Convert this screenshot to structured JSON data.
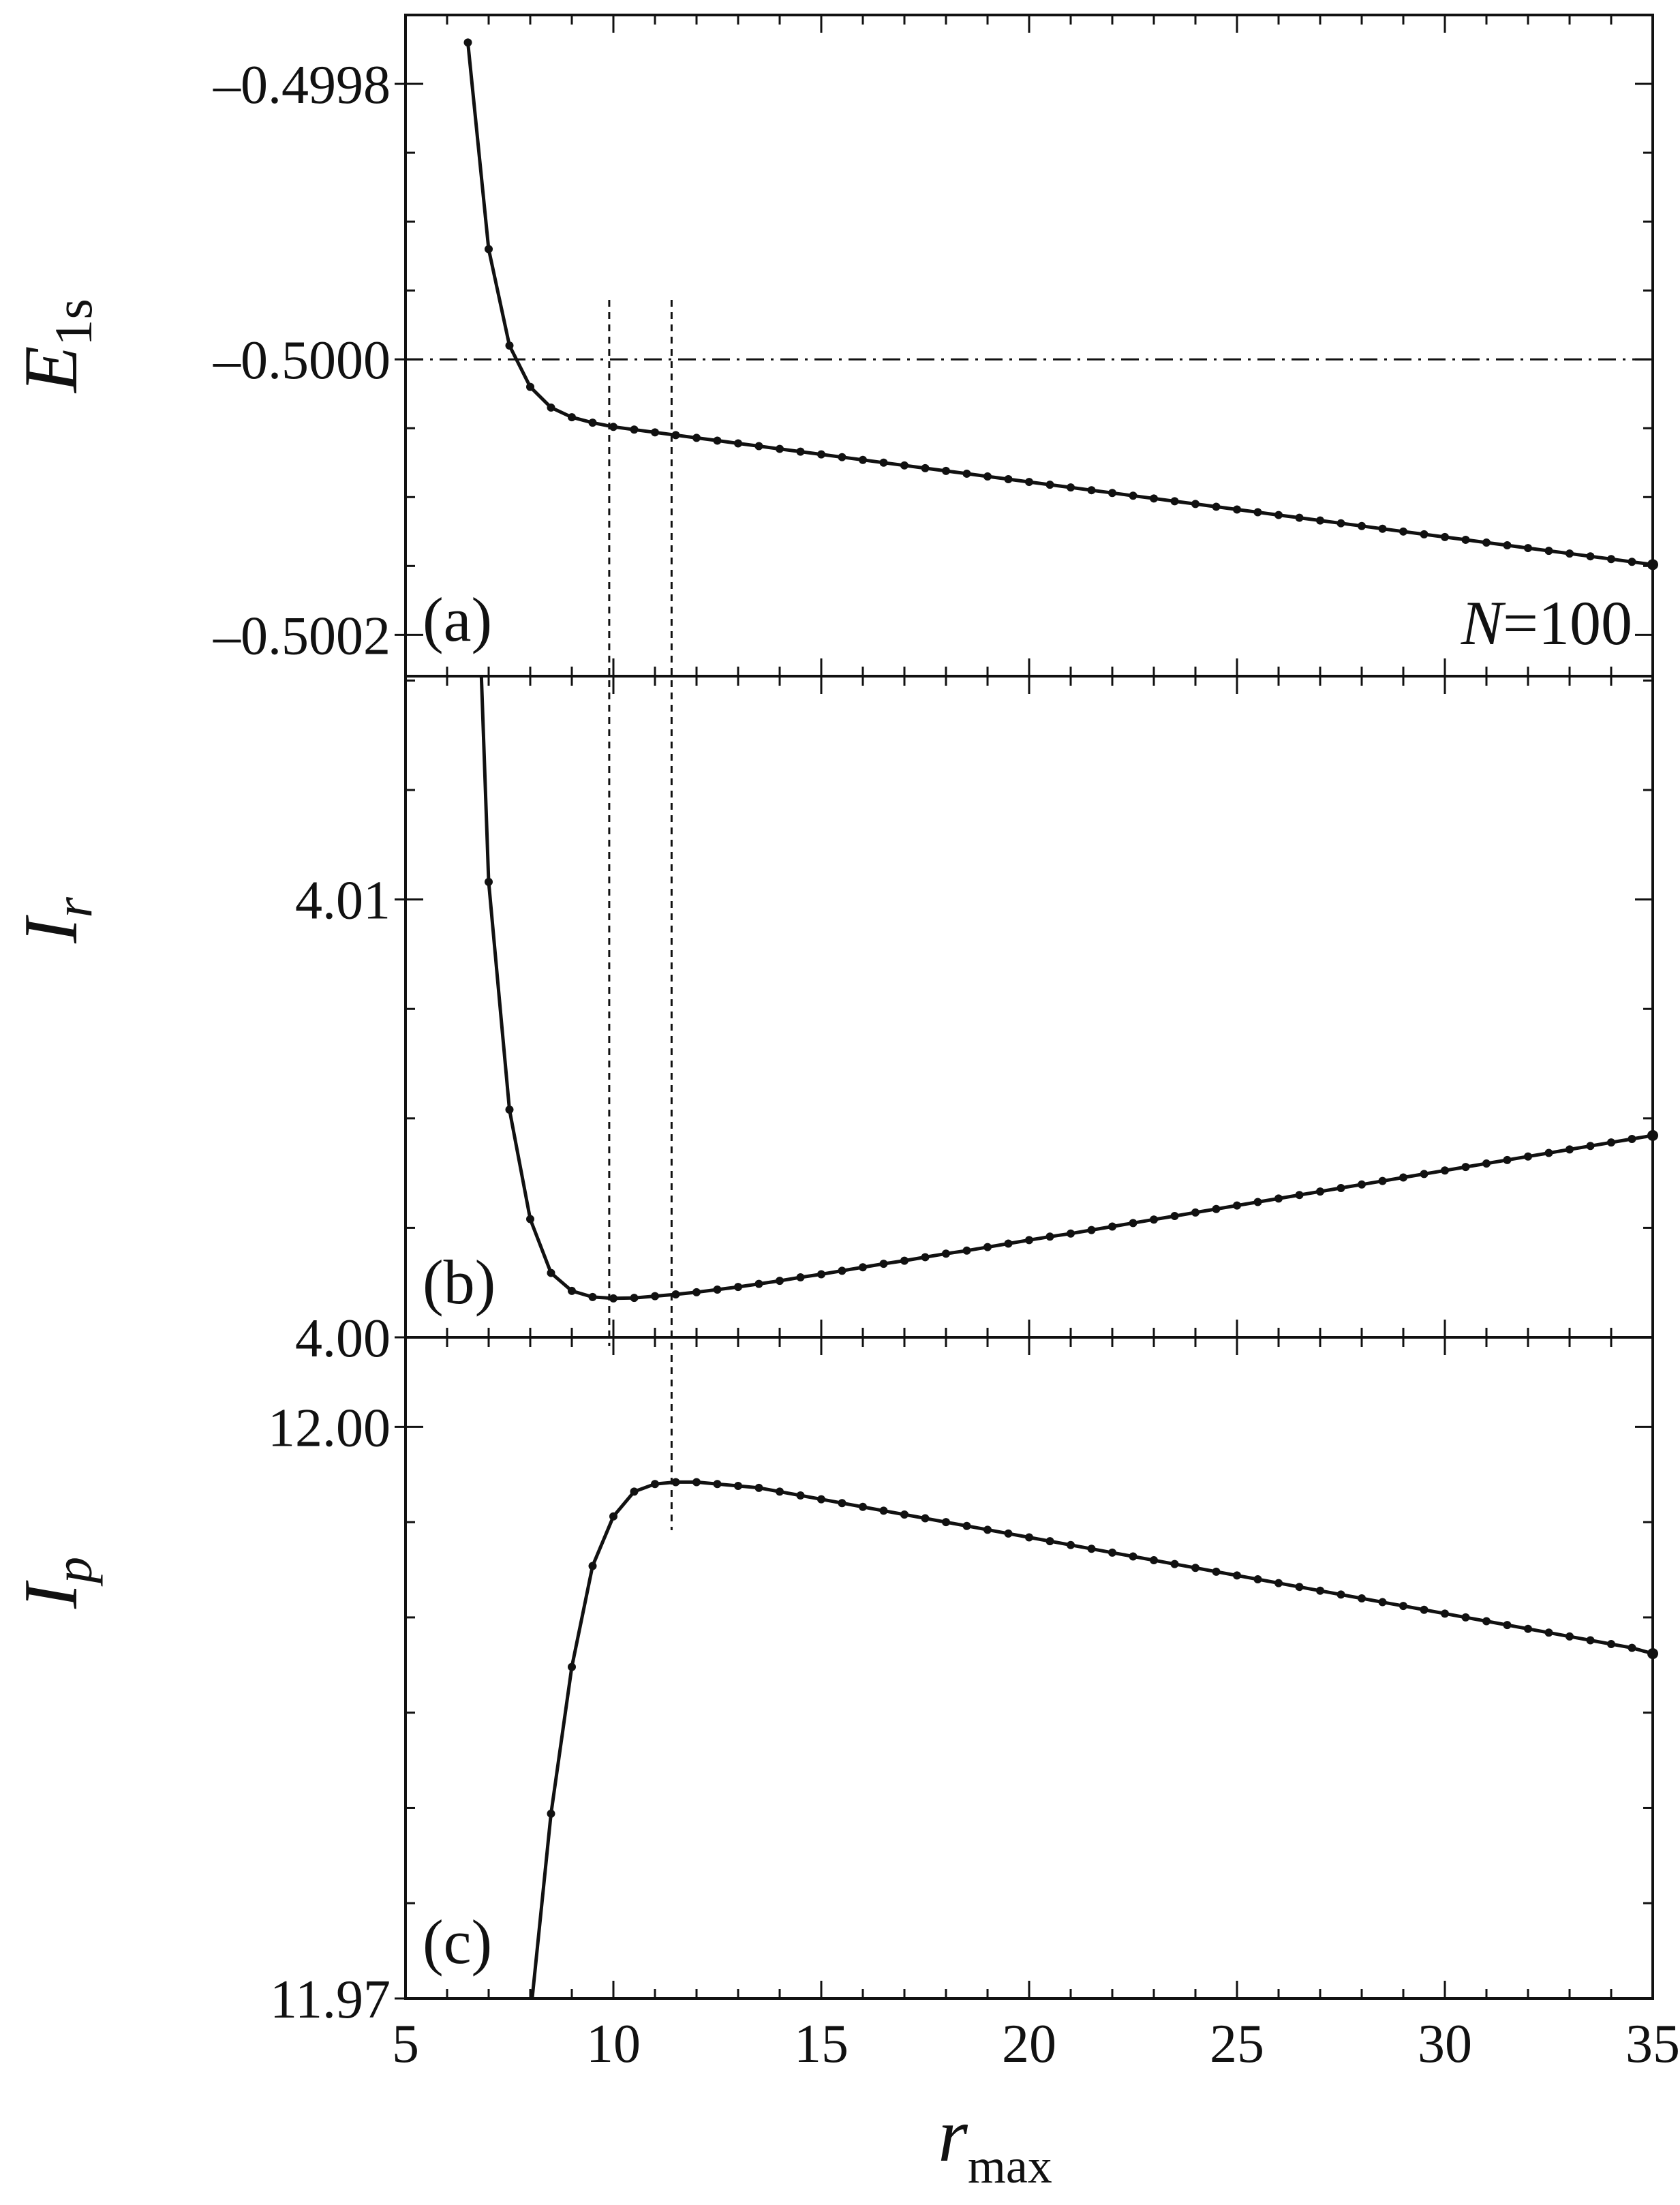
{
  "chart_data": {
    "type": "line",
    "x_axis": {
      "label_main": "r",
      "label_sub": "max",
      "range": [
        5,
        35
      ],
      "ticks": [
        "5",
        "10",
        "15",
        "20",
        "25",
        "30",
        "35"
      ],
      "tick_values": [
        5,
        10,
        15,
        20,
        25,
        30,
        35
      ]
    },
    "panels": [
      {
        "id": "a",
        "label": "(a)",
        "ylabel_main": "E",
        "ylabel_sub": "1s",
        "ylim": [
          -0.50023,
          -0.49975
        ],
        "yticks": [
          {
            "value": -0.4998,
            "label": "–0.4998"
          },
          {
            "value": -0.5,
            "label": "–0.5000"
          },
          {
            "value": -0.5002,
            "label": "–0.5002"
          }
        ],
        "annotation": {
          "italic": "N",
          "rest": "=100"
        },
        "reference_line": -0.5,
        "series": [
          {
            "x": [
              6.5,
              7.0,
              7.5,
              8.0,
              8.5,
              9.0,
              9.5,
              10.0,
              10.5,
              11.0,
              11.5,
              12.0,
              12.5,
              13.0,
              13.5,
              14.0,
              14.5,
              15.0,
              15.5,
              16.0,
              16.5,
              17.0,
              17.5,
              18.0,
              18.5,
              19.0,
              19.5,
              20.0,
              20.5,
              21.0,
              21.5,
              22.0,
              22.5,
              23.0,
              23.5,
              24.0,
              24.5,
              25.0,
              25.5,
              26.0,
              26.5,
              27.0,
              27.5,
              28.0,
              28.5,
              29.0,
              29.5,
              30.0,
              30.5,
              31.0,
              31.5,
              32.0,
              32.5,
              33.0,
              33.5,
              34.0,
              34.5,
              35.0
            ],
            "y": [
              -0.49977,
              -0.49992,
              -0.49999,
              -0.50002,
              -0.500035,
              -0.500042,
              -0.500046,
              -0.500049,
              -0.500051,
              -0.500053,
              -0.500055,
              -0.500057,
              -0.500059,
              -0.500061,
              -0.500063,
              -0.500065,
              -0.500067,
              -0.500069,
              -0.500071,
              -0.500073,
              -0.500075,
              -0.500077,
              -0.500079,
              -0.500081,
              -0.500083,
              -0.500085,
              -0.500087,
              -0.500089,
              -0.500091,
              -0.500093,
              -0.500095,
              -0.500097,
              -0.500099,
              -0.500101,
              -0.500103,
              -0.500105,
              -0.500107,
              -0.500109,
              -0.500111,
              -0.500113,
              -0.500115,
              -0.500117,
              -0.500119,
              -0.500121,
              -0.500123,
              -0.500125,
              -0.500127,
              -0.500129,
              -0.500131,
              -0.500133,
              -0.500135,
              -0.500137,
              -0.500139,
              -0.500141,
              -0.500143,
              -0.500145,
              -0.500147,
              -0.500149
            ]
          }
        ]
      },
      {
        "id": "b",
        "label": "(b)",
        "ylabel_main": "I",
        "ylabel_sub": "r",
        "ylim": [
          4.0,
          4.0151
        ],
        "yticks": [
          {
            "value": 4.01,
            "label": "4.01"
          },
          {
            "value": 4.0,
            "label": "4.00"
          }
        ],
        "series": [
          {
            "x": [
              6.5,
              7.0,
              7.5,
              8.0,
              8.5,
              9.0,
              9.5,
              10.0,
              10.5,
              11.0,
              11.5,
              12.0,
              12.5,
              13.0,
              13.5,
              14.0,
              14.5,
              15.0,
              15.5,
              16.0,
              16.5,
              17.0,
              17.5,
              18.0,
              18.5,
              19.0,
              19.5,
              20.0,
              20.5,
              21.0,
              21.5,
              22.0,
              22.5,
              23.0,
              23.5,
              24.0,
              24.5,
              25.0,
              25.5,
              26.0,
              26.5,
              27.0,
              27.5,
              28.0,
              28.5,
              29.0,
              29.5,
              30.0,
              30.5,
              31.0,
              31.5,
              32.0,
              32.5,
              33.0,
              33.5,
              34.0,
              34.5,
              35.0
            ],
            "y": [
              4.0238,
              4.0104,
              4.0052,
              4.0027,
              4.00147,
              4.00106,
              4.00092,
              4.00089,
              4.0009,
              4.00094,
              4.00098,
              4.00103,
              4.00109,
              4.00115,
              4.00122,
              4.00129,
              4.00137,
              4.00144,
              4.00152,
              4.0016,
              4.00168,
              4.00175,
              4.00183,
              4.00191,
              4.00198,
              4.00206,
              4.00214,
              4.00222,
              4.0023,
              4.00237,
              4.00245,
              4.00253,
              4.00261,
              4.00269,
              4.00277,
              4.00285,
              4.00293,
              4.00301,
              4.00309,
              4.00317,
              4.00325,
              4.00333,
              4.00341,
              4.00349,
              4.00357,
              4.00365,
              4.00373,
              4.00381,
              4.00389,
              4.00397,
              4.00405,
              4.00413,
              4.00421,
              4.00429,
              4.00437,
              4.00445,
              4.00453,
              4.00461
            ]
          }
        ]
      },
      {
        "id": "c",
        "label": "(c)",
        "ylabel_main": "I",
        "ylabel_sub": "p",
        "ylim": [
          11.97,
          12.0047
        ],
        "yticks": [
          {
            "value": 12.0,
            "label": "12.00"
          },
          {
            "value": 11.97,
            "label": "11.97"
          }
        ],
        "series": [
          {
            "x": [
              8.0,
              8.5,
              9.0,
              9.5,
              10.0,
              10.5,
              11.0,
              11.5,
              12.0,
              12.5,
              13.0,
              13.5,
              14.0,
              14.5,
              15.0,
              15.5,
              16.0,
              16.5,
              17.0,
              17.5,
              18.0,
              18.5,
              19.0,
              19.5,
              20.0,
              20.5,
              21.0,
              21.5,
              22.0,
              22.5,
              23.0,
              23.5,
              24.0,
              24.5,
              25.0,
              25.5,
              26.0,
              26.5,
              27.0,
              27.5,
              28.0,
              28.5,
              29.0,
              29.5,
              30.0,
              30.5,
              31.0,
              31.5,
              32.0,
              32.5,
              33.0,
              33.5,
              34.0,
              34.5,
              35.0
            ],
            "y": [
              11.969,
              11.9797,
              11.9874,
              11.9927,
              11.9953,
              11.9966,
              11.997,
              11.9971,
              11.9971,
              11.997,
              11.9969,
              11.9968,
              11.9966,
              11.9964,
              11.9962,
              11.996,
              11.9958,
              11.9956,
              11.9954,
              11.9952,
              11.995,
              11.9948,
              11.9946,
              11.9944,
              11.9942,
              11.994,
              11.9938,
              11.9936,
              11.9934,
              11.9932,
              11.993,
              11.9928,
              11.9926,
              11.9924,
              11.9922,
              11.992,
              11.9918,
              11.9916,
              11.9914,
              11.9912,
              11.991,
              11.9908,
              11.9906,
              11.9904,
              11.9902,
              11.99,
              11.9898,
              11.9896,
              11.9894,
              11.9892,
              11.989,
              11.9888,
              11.9886,
              11.9884,
              11.9881
            ]
          }
        ]
      }
    ],
    "vertical_markers": [
      {
        "x": 9.9,
        "panels": [
          "a",
          "b"
        ]
      },
      {
        "x": 11.4,
        "panels": [
          "a",
          "b",
          "c"
        ]
      }
    ],
    "grid": false,
    "legend": "none"
  }
}
